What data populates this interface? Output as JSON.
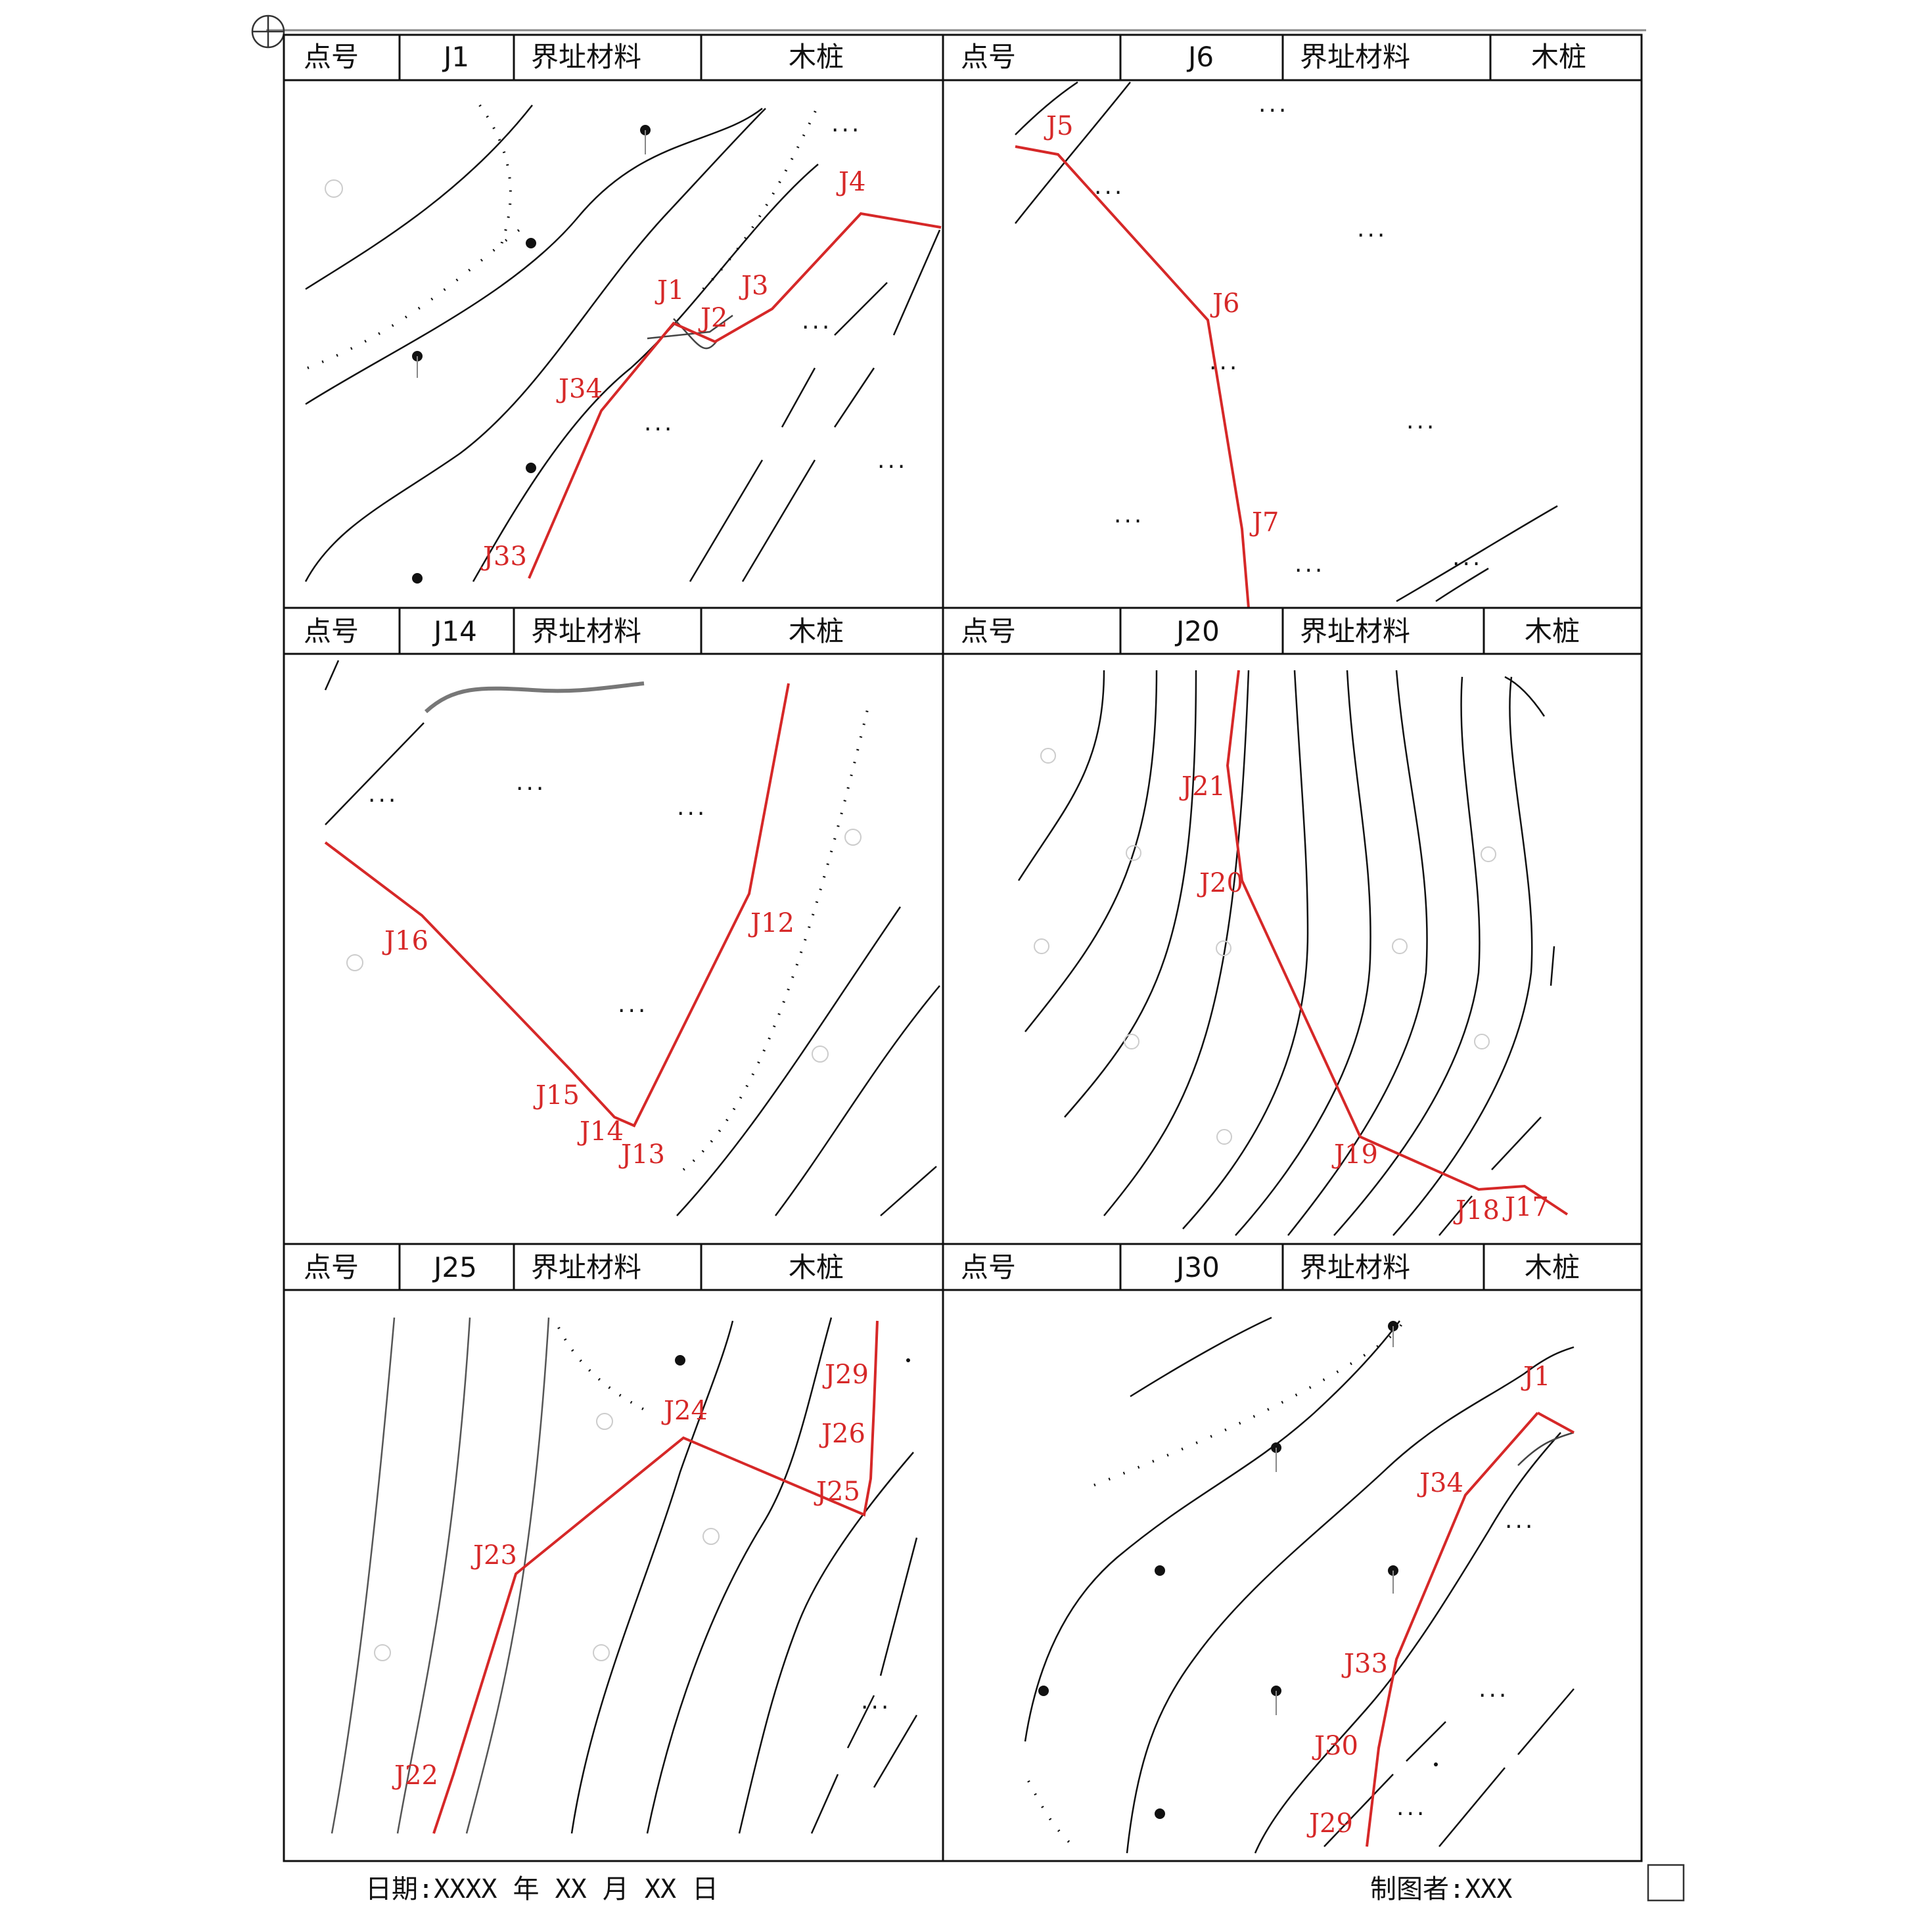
{
  "colors": {
    "boundary": "#d62828",
    "contour": "#111111",
    "grid": "#111111"
  },
  "panels": [
    {
      "header": {
        "point_label": "点号",
        "point_value": "J1",
        "material_label": "界址材料",
        "material_value": "木桩"
      },
      "points": [
        "J1",
        "J2",
        "J3",
        "J4",
        "J34",
        "J33"
      ]
    },
    {
      "header": {
        "point_label": "点号",
        "point_value": "J6",
        "material_label": "界址材料",
        "material_value": "木桩"
      },
      "points": [
        "J5",
        "J6",
        "J7"
      ]
    },
    {
      "header": {
        "point_label": "点号",
        "point_value": "J14",
        "material_label": "界址材料",
        "material_value": "木桩"
      },
      "points": [
        "J12",
        "J13",
        "J14",
        "J15",
        "J16"
      ]
    },
    {
      "header": {
        "point_label": "点号",
        "point_value": "J20",
        "material_label": "界址材料",
        "material_value": "木桩"
      },
      "points": [
        "J21",
        "J20",
        "J19",
        "J18",
        "J17"
      ]
    },
    {
      "header": {
        "point_label": "点号",
        "point_value": "J25",
        "material_label": "界址材料",
        "material_value": "木桩"
      },
      "points": [
        "J29",
        "J24",
        "J26",
        "J25",
        "J23",
        "J22"
      ]
    },
    {
      "header": {
        "point_label": "点号",
        "point_value": "J30",
        "material_label": "界址材料",
        "material_value": "木桩"
      },
      "points": [
        "J1",
        "J34",
        "J33",
        "J30",
        "J29"
      ]
    }
  ],
  "footer": {
    "date": "日期:XXXX 年 XX 月 XX 日",
    "author": "制图者:XXX"
  }
}
